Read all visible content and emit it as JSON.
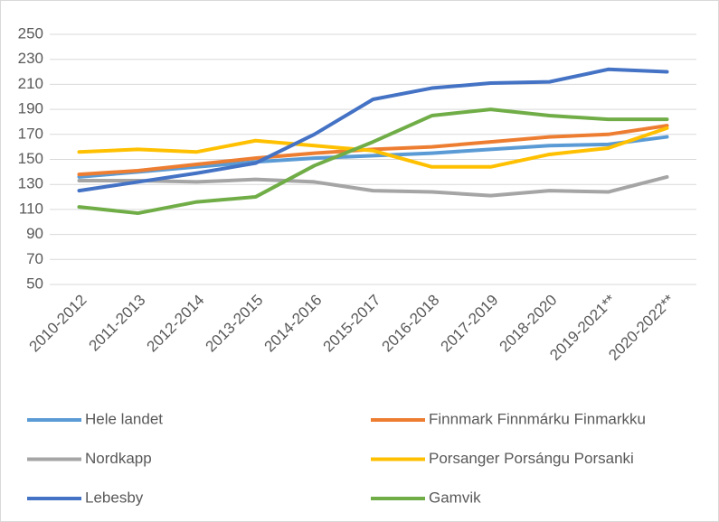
{
  "chart_data": {
    "type": "line",
    "categories": [
      "2010-2012",
      "2011-2013",
      "2012-2014",
      "2013-2015",
      "2014-2016",
      "2015-2017",
      "2016-2018",
      "2017-2019",
      "2018-2020",
      "2019-2021**",
      "2020-2022**"
    ],
    "series": [
      {
        "name": "Hele landet",
        "color": "#5b9bd5",
        "values": [
          136,
          140,
          144,
          148,
          151,
          153,
          155,
          158,
          161,
          162,
          168
        ]
      },
      {
        "name": "Finnmark Finnmárku Finmarkku",
        "color": "#ed7d31",
        "values": [
          138,
          141,
          146,
          151,
          155,
          158,
          160,
          164,
          168,
          170,
          177
        ]
      },
      {
        "name": "Nordkapp",
        "color": "#a5a5a5",
        "values": [
          133,
          133,
          132,
          134,
          132,
          125,
          124,
          121,
          125,
          124,
          136
        ]
      },
      {
        "name": "Porsanger Porsángu Porsanki",
        "color": "#ffc000",
        "values": [
          156,
          158,
          156,
          165,
          161,
          157,
          144,
          144,
          154,
          159,
          175
        ]
      },
      {
        "name": "Lebesby",
        "color": "#4472c4",
        "values": [
          125,
          132,
          139,
          147,
          170,
          198,
          207,
          211,
          212,
          222,
          220
        ]
      },
      {
        "name": "Gamvik",
        "color": "#70ad47",
        "values": [
          112,
          107,
          116,
          120,
          145,
          164,
          185,
          190,
          185,
          182,
          182
        ]
      }
    ],
    "ylim": [
      50,
      250
    ],
    "yticks": [
      50,
      70,
      90,
      110,
      130,
      150,
      170,
      190,
      210,
      230,
      250
    ],
    "grid": true,
    "legend": "bottom"
  }
}
